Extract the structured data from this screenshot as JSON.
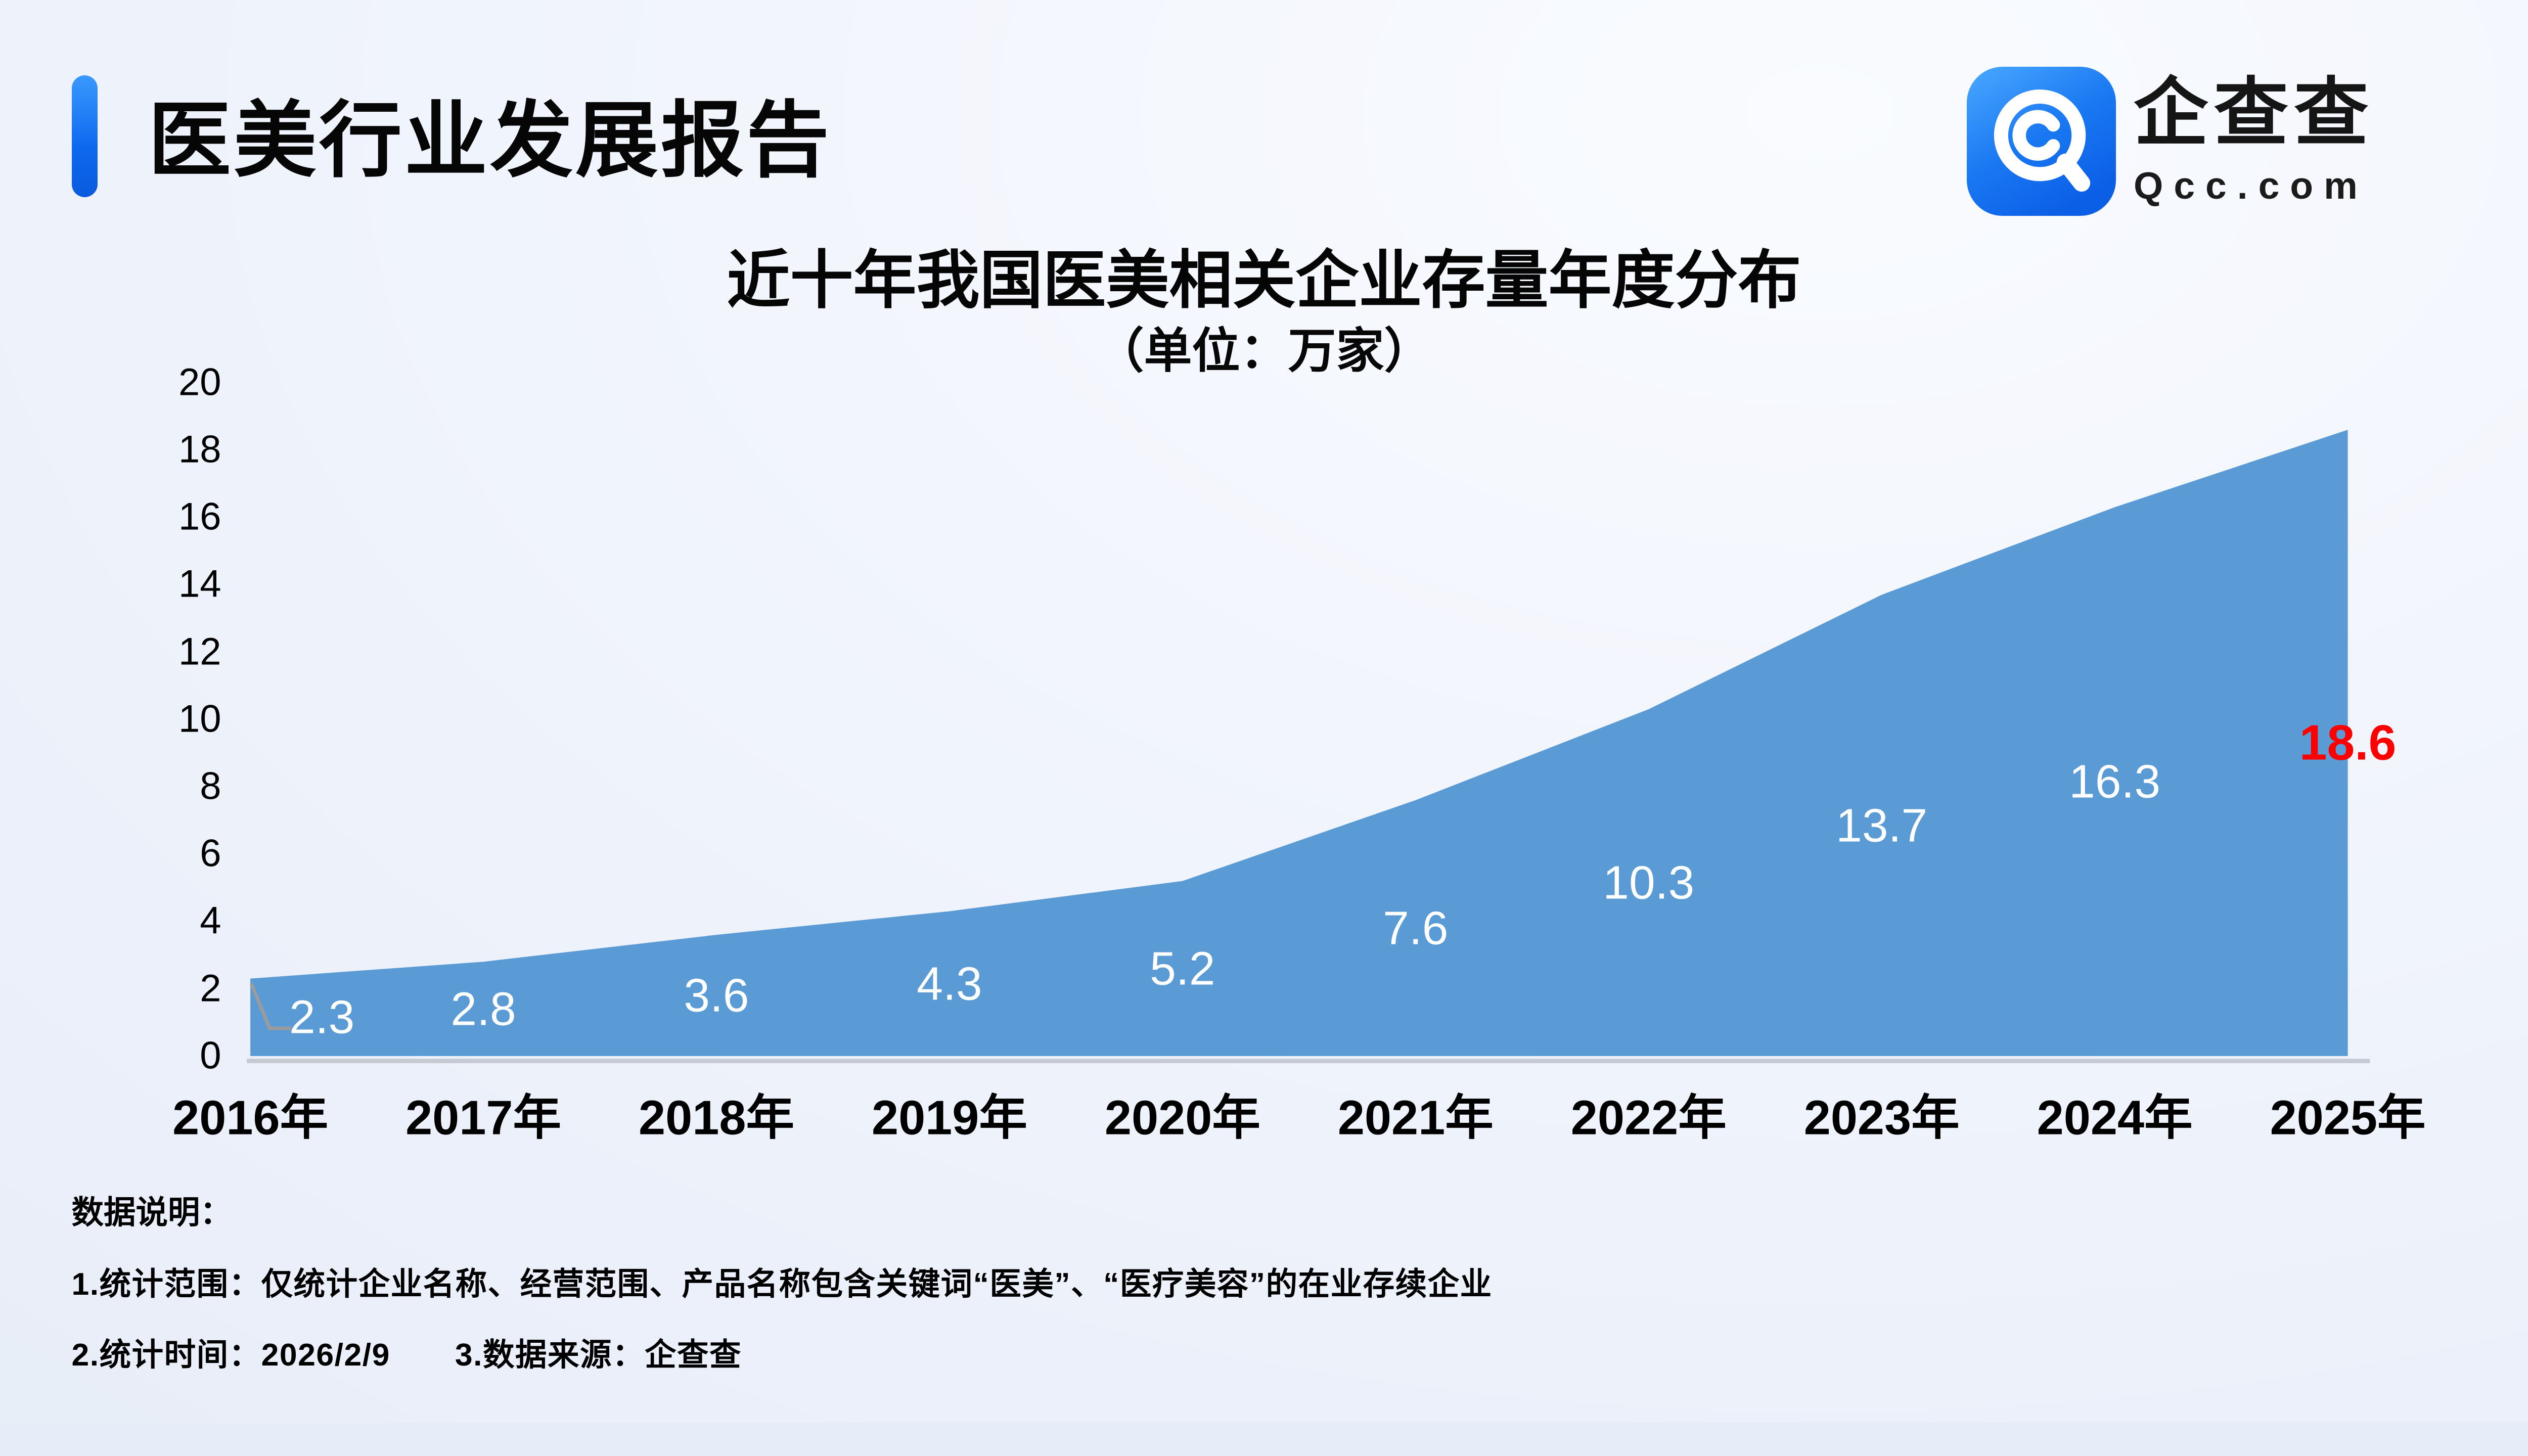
{
  "header": {
    "title": "医美行业发展报告",
    "accent_color": "#1677F3"
  },
  "logo": {
    "icon": "qcc-spiral-icon",
    "name_cn": "企查查",
    "domain": "Qcc.com",
    "brand_color": "#1E86F0"
  },
  "chart_data": {
    "type": "area",
    "title": "近十年我国医美相关企业存量年度分布",
    "unit_label": "（单位：万家）",
    "categories": [
      "2016年",
      "2017年",
      "2018年",
      "2019年",
      "2020年",
      "2021年",
      "2022年",
      "2023年",
      "2024年",
      "2025年"
    ],
    "values": [
      2.3,
      2.8,
      3.6,
      4.3,
      5.2,
      7.6,
      10.3,
      13.7,
      16.3,
      18.6
    ],
    "labels": [
      "2.3",
      "2.8",
      "3.6",
      "4.3",
      "5.2",
      "7.6",
      "10.3",
      "13.7",
      "16.3",
      "18.6"
    ],
    "ylim": [
      0,
      20
    ],
    "ytick_step": 2,
    "yticks": [
      20,
      18,
      16,
      14,
      12,
      10,
      8,
      6,
      4,
      2,
      0
    ],
    "area_color": "#5B9BD5",
    "label_color": "#FFFFFF",
    "highlight": {
      "index": 9,
      "color": "#FF0000"
    },
    "leader_line": true,
    "grid": false,
    "legend": "none"
  },
  "notes": {
    "heading": "数据说明：",
    "line1": "1.统计范围：仅统计企业名称、经营范围、产品名称包含关键词“医美”、“医疗美容”的在业存续企业",
    "line2": "2.统计时间：2026/2/9　　3.数据来源：企查查"
  }
}
